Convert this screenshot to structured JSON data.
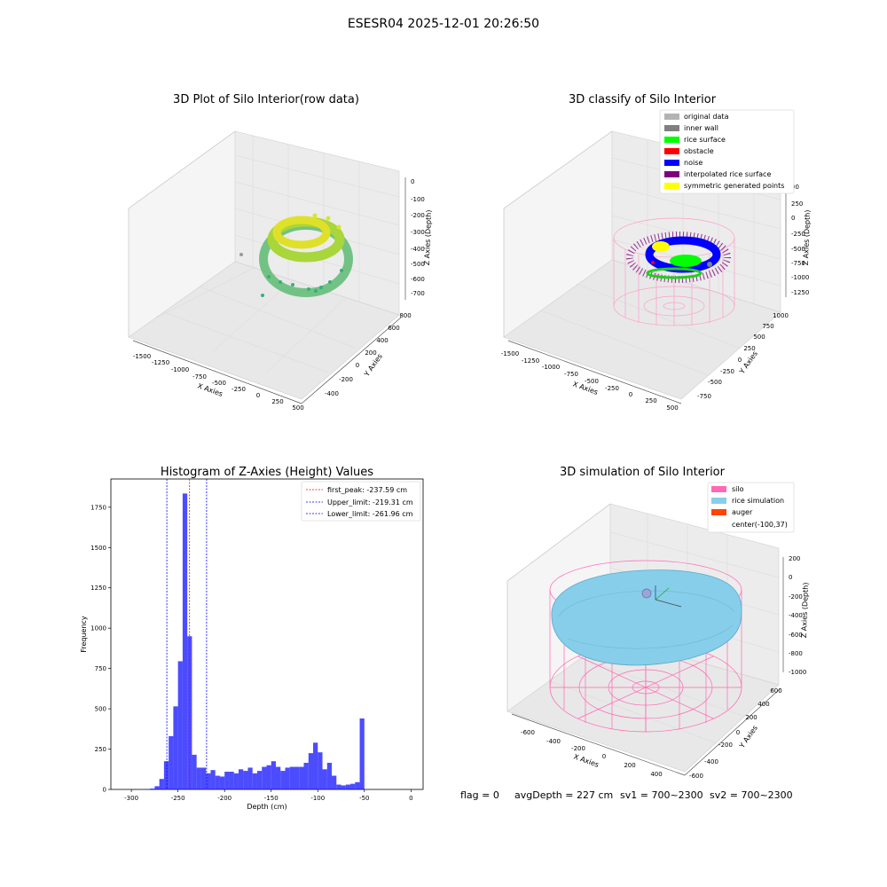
{
  "figure": {
    "suptitle": "ESESR04 2025-12-01 20:26:50",
    "footer": {
      "flag": "flag = 0",
      "avgDepth": "avgDepth = 227 cm",
      "sv1": "sv1 = 700~2300",
      "sv2": "sv2 = 700~2300"
    }
  },
  "panels": {
    "raw": {
      "title": "3D Plot of Silo Interior(row data)",
      "xlabel": "X Axies",
      "ylabel": "Y Axies",
      "zlabel": "Z Axies (Depth)",
      "xticks": [
        "-1500",
        "-1250",
        "-1000",
        "-750",
        "-500",
        "-250",
        "0",
        "250",
        "500"
      ],
      "yticks": [
        "-400",
        "-200",
        "0",
        "200",
        "400",
        "600",
        "800"
      ],
      "zticks": [
        "0",
        "-100",
        "-200",
        "-300",
        "-400",
        "-500",
        "-600",
        "-700"
      ]
    },
    "classify": {
      "title": "3D classify of Silo Interior",
      "xlabel": "X Axies",
      "ylabel": "Y Axies",
      "zlabel": "Z Axies (Depth)",
      "xticks": [
        "-1500",
        "-1250",
        "-1000",
        "-750",
        "-500",
        "-250",
        "0",
        "250",
        "500"
      ],
      "yticks": [
        "-750",
        "-500",
        "-250",
        "0",
        "250",
        "500",
        "750",
        "1000"
      ],
      "zticks": [
        "500",
        "250",
        "0",
        "-250",
        "-500",
        "-750",
        "-1000",
        "-1250"
      ],
      "zticks_partial": "00",
      "legend": [
        {
          "label": "original data",
          "color": "#b3b3b3"
        },
        {
          "label": "inner wall",
          "color": "#808080"
        },
        {
          "label": "rice surface",
          "color": "#00ff00"
        },
        {
          "label": "obstacle",
          "color": "#ff0000"
        },
        {
          "label": "noise",
          "color": "#0000ff"
        },
        {
          "label": "interpolated rice surface",
          "color": "#800080"
        },
        {
          "label": "symmetric generated points",
          "color": "#ffff00"
        }
      ]
    },
    "simulation": {
      "title": "3D simulation of Silo Interior",
      "xlabel": "X Axies",
      "ylabel": "Y Axies",
      "zlabel": "Z Axies (Depth)",
      "xticks": [
        "-600",
        "-400",
        "-200",
        "0",
        "200",
        "400"
      ],
      "yticks": [
        "-600",
        "-400",
        "-200",
        "0",
        "200",
        "400",
        "600"
      ],
      "zticks": [
        "200",
        "0",
        "-200",
        "-400",
        "-600",
        "-800",
        "-1000"
      ],
      "legend": [
        {
          "label": "silo",
          "color": "#ff69b4"
        },
        {
          "label": "rice simulation",
          "color": "#87ceeb"
        },
        {
          "label": "auger",
          "color": "#ff4500"
        },
        {
          "label": "center(-100,37)",
          "color": ""
        }
      ]
    }
  },
  "chart_data": {
    "type": "bar",
    "title": "Histogram of Z-Axies (Height) Values",
    "xlabel": "Depth (cm)",
    "ylabel": "Frequency",
    "xlim": [
      -322,
      13
    ],
    "ylim": [
      0,
      1925
    ],
    "xticks": [
      -300,
      -250,
      -200,
      -150,
      -100,
      -50,
      0
    ],
    "yticks": [
      0,
      250,
      500,
      750,
      1000,
      1250,
      1500,
      1750
    ],
    "bar_color": "#0000ff",
    "bin_start": -285,
    "bin_width": 5,
    "values": [
      2,
      5,
      20,
      65,
      175,
      330,
      515,
      795,
      1835,
      950,
      215,
      135,
      135,
      100,
      120,
      85,
      80,
      110,
      110,
      100,
      125,
      115,
      135,
      100,
      115,
      140,
      150,
      175,
      140,
      115,
      135,
      140,
      140,
      140,
      165,
      225,
      290,
      230,
      125,
      165,
      85,
      30,
      25,
      30,
      35,
      45,
      440
    ],
    "vlines": [
      {
        "x": -237.59,
        "color": "#ff0000",
        "label": "first_peak: -237.59 cm"
      },
      {
        "x": -219.31,
        "color": "#0000ff",
        "label": "Upper_limit: -219.31 cm"
      },
      {
        "x": -261.96,
        "color": "#0000ff",
        "label": "Lower_limit: -261.96 cm"
      }
    ],
    "legend_position": "top-right"
  }
}
